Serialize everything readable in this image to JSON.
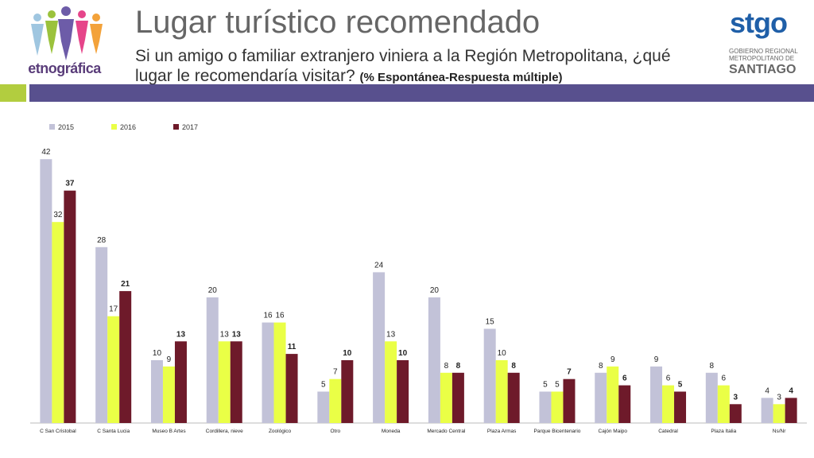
{
  "header": {
    "title": "Lugar turístico recomendado",
    "subtitle": "Si un amigo o familiar extranjero viniera a la Región Metropolitana, ¿qué lugar le recomendaría visitar?",
    "subtitle_note": "(% Espontánea-Respuesta múltiple)"
  },
  "logos": {
    "left_brand": "etnográfica",
    "right_brand": "stgo",
    "right_line1": "GOBIERNO REGIONAL",
    "right_line2": "METROPOLITANO DE",
    "right_line3": "SANTIAGO"
  },
  "colors": {
    "green_band": "#b2cd3f",
    "purple_band": "#58508e"
  },
  "chart_data": {
    "type": "bar",
    "categories": [
      "C San Cristobal",
      "C Santa Lucia",
      "Museo B Artes",
      "Cordillera, nieve",
      "Zoológico",
      "Otro",
      "Moneda",
      "Mercado Central",
      "Plaza Armas",
      "Parque Bicentenario",
      "Cajón Maipo",
      "Catedral",
      "Plaza Italia",
      "Ns/Nr"
    ],
    "series": [
      {
        "name": "2015",
        "color": "#c2c2d8",
        "values": [
          42,
          28,
          10,
          20,
          16,
          5,
          24,
          20,
          15,
          5,
          8,
          9,
          8,
          4
        ]
      },
      {
        "name": "2016",
        "color": "#eaff46",
        "values": [
          32,
          17,
          9,
          13,
          16,
          7,
          13,
          8,
          10,
          5,
          9,
          6,
          6,
          3
        ]
      },
      {
        "name": "2017",
        "color": "#6e1a2a",
        "values": [
          37,
          21,
          13,
          13,
          11,
          10,
          10,
          8,
          8,
          7,
          6,
          5,
          3,
          4
        ]
      }
    ],
    "ylim": [
      0,
      42
    ],
    "legend": "top-left",
    "grid": false
  }
}
